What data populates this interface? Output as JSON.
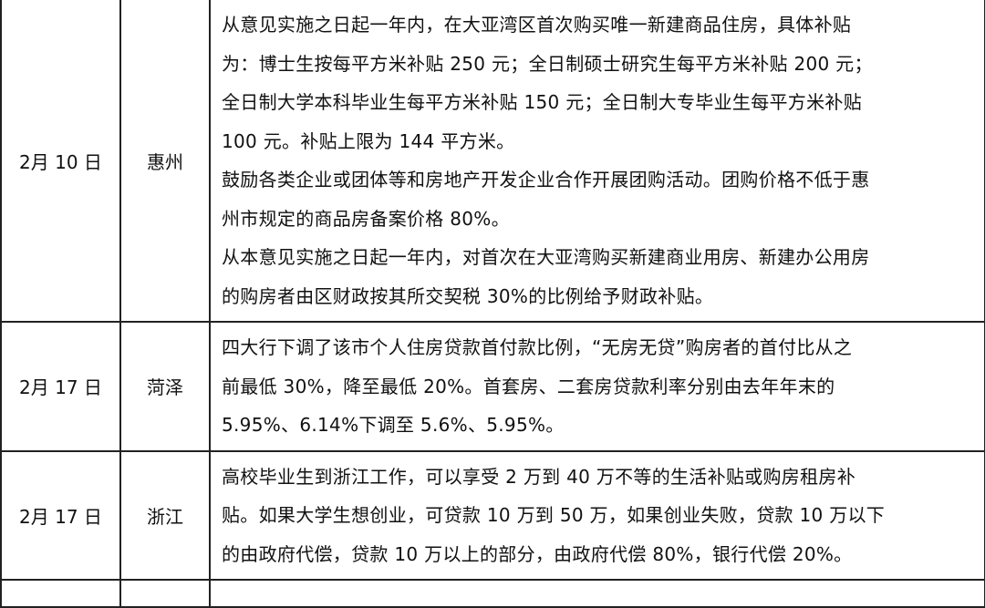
{
  "rows": [
    {
      "date": "2月 10 日",
      "city": "惠州",
      "lines": [
        "从意见实施之日起一年内，在大亚湾区首次购买唯一新建商品住房，具体补贴",
        "为：博士生按每平方米补贴 250 元；全日制硕士研究生每平方米补贴 200 元；",
        "全日制大学本科毕业生每平方米补贴 150 元；全日制大专毕业生每平方米补贴",
        "100 元。补贴上限为 144 平方米。",
        "鼓励各类企业或团体等和房地产开发企业合作开展团购活动。团购价格不低于惠",
        "州市规定的商品房备案价格 80%。",
        "从本意见实施之日起一年内，对首次在大亚湾购买新建商业用房、新建办公用房",
        "的购房者由区财政按其所交契税 30%的比例给予财政补贴。"
      ]
    },
    {
      "date": "2月 17 日",
      "city": "菏泽",
      "lines": [
        "四大行下调了该市个人住房贷款首付款比例，“无房无贷”购房者的首付比从之",
        "前最低 30%，降至最低 20%。首套房、二套房贷款利率分别由去年年末的",
        "5.95%、6.14%下调至 5.6%、5.95%。"
      ]
    },
    {
      "date": "2月 17 日",
      "city": "浙江",
      "lines": [
        "高校毕业生到浙江工作，可以享受 2 万到 40 万不等的生活补贴或购房租房补",
        "贴。如果大学生想创业，可贷款 10 万到 50 万，如果创业失败，贷款 10 万以下",
        "的由政府代偿，贷款 10 万以上的部分，由政府代偿 80%，银行代偿 20%。"
      ]
    }
  ]
}
